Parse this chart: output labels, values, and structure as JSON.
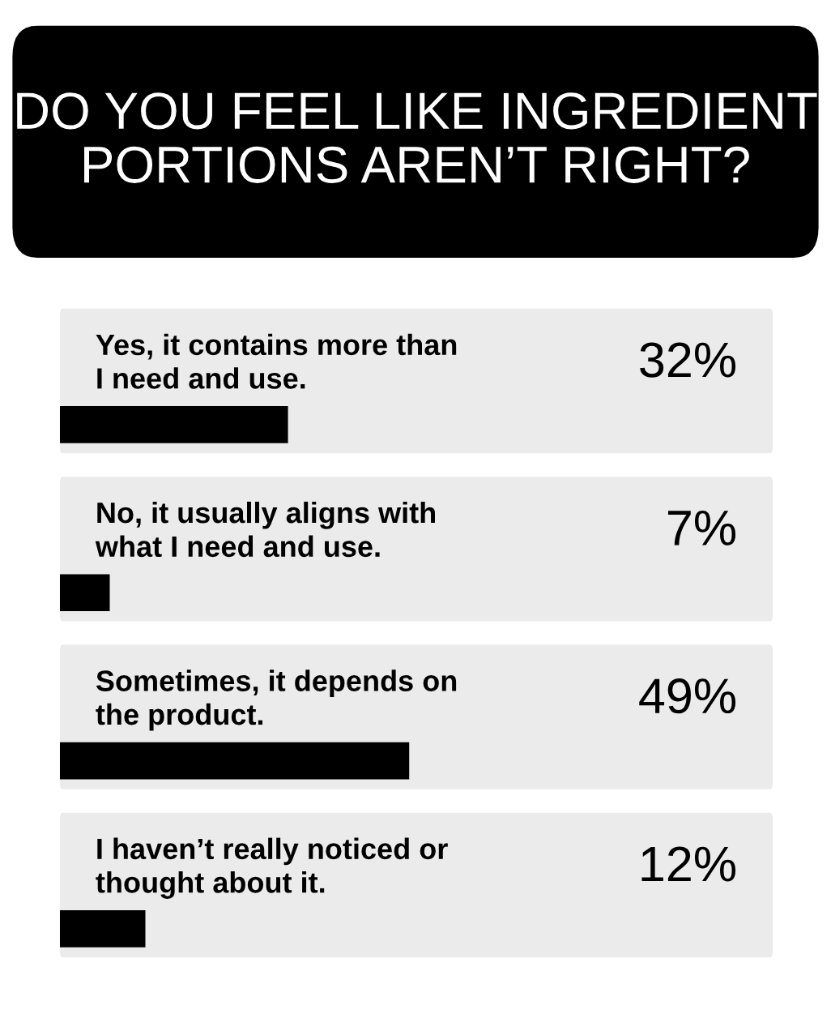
{
  "chart_data": {
    "type": "bar",
    "orientation": "horizontal",
    "title": "DO YOU FEEL LIKE INGREDIENT\nPORTIONS AREN’T RIGHT?",
    "categories": [
      "Yes, it contains more than\nI need and use.",
      "No, it usually aligns with\nwhat I need and use.",
      "Sometimes, it depends on\nthe product.",
      "I haven’t really noticed or\nthought about it."
    ],
    "values": [
      32,
      7,
      49,
      12
    ],
    "value_labels": [
      "32%",
      "7%",
      "49%",
      "12%"
    ],
    "color": "#000000",
    "xlim": [
      0,
      100
    ]
  }
}
